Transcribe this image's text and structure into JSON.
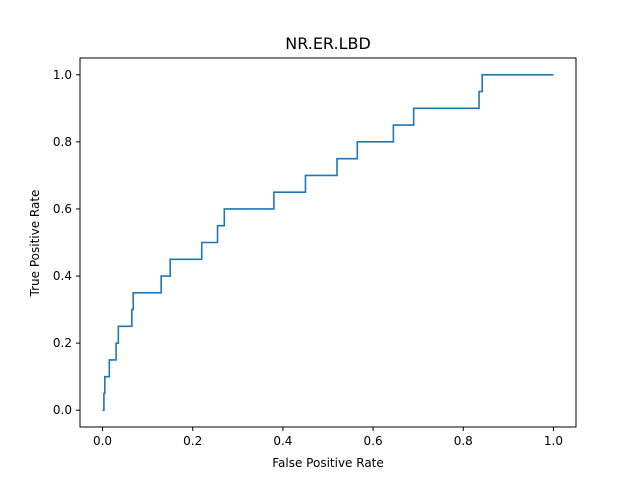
{
  "chart_data": {
    "type": "line",
    "title": "NR.ER.LBD",
    "xlabel": "False Positive Rate",
    "ylabel": "True Positive Rate",
    "xlim": [
      -0.05,
      1.05
    ],
    "ylim": [
      -0.05,
      1.05
    ],
    "grid": false,
    "x_ticks": [
      "0.0",
      "0.2",
      "0.4",
      "0.6",
      "0.8",
      "1.0"
    ],
    "y_ticks": [
      "0.0",
      "0.2",
      "0.4",
      "0.6",
      "0.8",
      "1.0"
    ],
    "series": [
      {
        "color": "#1f77b4",
        "x": [
          0.0,
          0.003,
          0.003,
          0.005,
          0.005,
          0.008,
          0.008,
          0.015,
          0.015,
          0.03,
          0.03,
          0.035,
          0.035,
          0.065,
          0.065,
          0.068,
          0.068,
          0.13,
          0.13,
          0.15,
          0.15,
          0.22,
          0.22,
          0.255,
          0.255,
          0.27,
          0.27,
          0.38,
          0.38,
          0.45,
          0.45,
          0.52,
          0.52,
          0.565,
          0.565,
          0.645,
          0.645,
          0.69,
          0.69,
          0.835,
          0.835,
          0.842,
          0.842,
          1.0
        ],
        "y": [
          0.0,
          0.0,
          0.05,
          0.05,
          0.1,
          0.1,
          0.1,
          0.1,
          0.15,
          0.15,
          0.2,
          0.2,
          0.25,
          0.25,
          0.3,
          0.3,
          0.35,
          0.35,
          0.4,
          0.4,
          0.45,
          0.45,
          0.5,
          0.5,
          0.55,
          0.55,
          0.6,
          0.6,
          0.65,
          0.65,
          0.7,
          0.7,
          0.75,
          0.75,
          0.8,
          0.8,
          0.85,
          0.85,
          0.9,
          0.9,
          0.95,
          0.95,
          1.0,
          1.0
        ]
      }
    ]
  }
}
